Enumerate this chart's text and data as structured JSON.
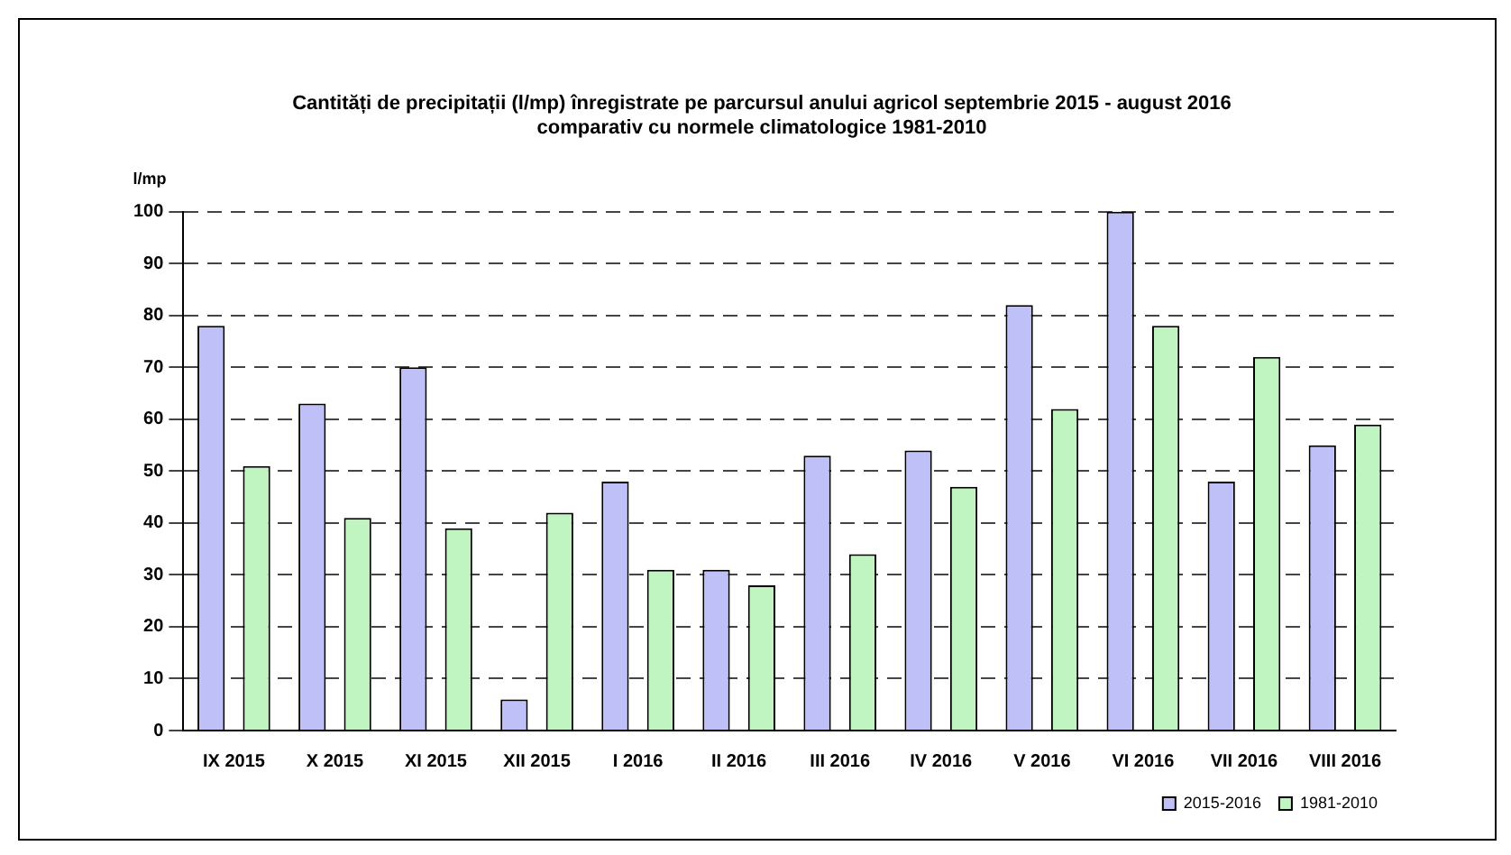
{
  "chart_data": {
    "type": "bar",
    "title": "Cantități de precipitații (l/mp) înregistrate pe parcursul anului agricol septembrie 2015 - august 2016\ncomparativ cu normele climatologice 1981-2010",
    "ylabel": "l/mp",
    "categories": [
      "IX 2015",
      "X 2015",
      "XI 2015",
      "XII 2015",
      "I 2016",
      "II 2016",
      "III 2016",
      "IV 2016",
      "V 2016",
      "VI 2016",
      "VII 2016",
      "VIII 2016"
    ],
    "series": [
      {
        "name": "2015-2016",
        "color": "#c0c0f8",
        "values": [
          78,
          63,
          70,
          6,
          48,
          31,
          53,
          54,
          82,
          100,
          48,
          55
        ]
      },
      {
        "name": "1981-2010",
        "color": "#c0f4c0",
        "values": [
          51,
          41,
          39,
          42,
          31,
          28,
          34,
          47,
          62,
          78,
          72,
          59
        ]
      }
    ],
    "ylim": [
      0,
      100
    ],
    "yticks": [
      0,
      10,
      20,
      30,
      40,
      50,
      60,
      70,
      80,
      90,
      100
    ],
    "grid": "y",
    "legend": "bottom right"
  }
}
